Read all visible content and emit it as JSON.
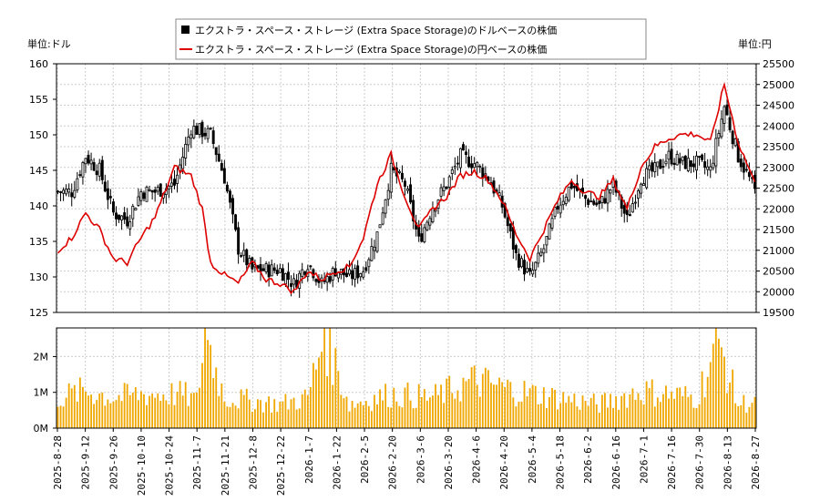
{
  "chart_data": {
    "type": "candlestick_line_volume",
    "legend": {
      "placement": "top-center",
      "entries": [
        {
          "label": "エクストラ・スペース・ストレージ (Extra Space Storage)のドルベースの株価",
          "color": "#000000",
          "marker": "square"
        },
        {
          "label": "エクストラ・スペース・ストレージ (Extra Space Storage)の円ベースの株価",
          "color": "#dd0000",
          "marker": "line"
        }
      ]
    },
    "left_unit_label": "単位:ドル",
    "right_unit_label": "単位:円",
    "left_axis": {
      "min": 125,
      "max": 160,
      "ticks": [
        "160",
        "155",
        "150",
        "145",
        "140",
        "135",
        "130",
        "125"
      ]
    },
    "right_axis": {
      "min": 19500,
      "max": 25500,
      "ticks": [
        "25500",
        "25000",
        "24500",
        "24000",
        "23500",
        "23000",
        "22500",
        "22000",
        "21500",
        "21000",
        "20500",
        "20000",
        "19500"
      ]
    },
    "volume_axis": {
      "min": 0,
      "max": 2800000,
      "ticks": [
        "2M",
        "1M",
        "0M"
      ]
    },
    "x_ticks": [
      "2025-8-28",
      "2025-9-12",
      "2025-9-26",
      "2025-10-10",
      "2025-10-24",
      "2025-11-7",
      "2025-11-21",
      "2025-12-8",
      "2025-12-22",
      "2026-1-7",
      "2026-1-22",
      "2026-2-5",
      "2026-2-20",
      "2026-3-6",
      "2026-3-20",
      "2026-4-6",
      "2026-4-20",
      "2026-5-4",
      "2026-5-18",
      "2026-6-2",
      "2026-6-16",
      "2026-7-1",
      "2026-7-16",
      "2026-7-30",
      "2026-8-13",
      "2026-8-27"
    ],
    "trading_days": 252,
    "usd_close_anchors": [
      [
        0,
        142
      ],
      [
        5,
        142
      ],
      [
        10,
        147
      ],
      [
        15,
        145
      ],
      [
        20,
        139
      ],
      [
        25,
        138
      ],
      [
        30,
        142
      ],
      [
        35,
        142
      ],
      [
        42,
        143
      ],
      [
        48,
        151
      ],
      [
        55,
        150
      ],
      [
        60,
        144
      ],
      [
        65,
        134
      ],
      [
        70,
        131
      ],
      [
        75,
        131
      ],
      [
        80,
        131
      ],
      [
        85,
        129
      ],
      [
        90,
        132
      ],
      [
        95,
        129
      ],
      [
        100,
        131
      ],
      [
        105,
        130
      ],
      [
        110,
        131
      ],
      [
        115,
        136
      ],
      [
        120,
        145
      ],
      [
        125,
        143
      ],
      [
        130,
        135
      ],
      [
        135,
        140
      ],
      [
        140,
        143
      ],
      [
        145,
        147
      ],
      [
        150,
        146
      ],
      [
        155,
        144
      ],
      [
        160,
        140
      ],
      [
        165,
        133
      ],
      [
        170,
        130
      ],
      [
        175,
        134
      ],
      [
        180,
        140
      ],
      [
        185,
        143
      ],
      [
        190,
        141
      ],
      [
        195,
        140
      ],
      [
        200,
        143
      ],
      [
        205,
        138
      ],
      [
        210,
        144
      ],
      [
        215,
        145
      ],
      [
        220,
        147
      ],
      [
        225,
        146
      ],
      [
        230,
        146
      ],
      [
        235,
        145
      ],
      [
        240,
        154
      ],
      [
        245,
        147
      ],
      [
        250,
        143
      ],
      [
        251,
        142
      ]
    ],
    "jpy_anchors": [
      [
        0,
        21000
      ],
      [
        5,
        21300
      ],
      [
        10,
        21900
      ],
      [
        15,
        21500
      ],
      [
        20,
        20800
      ],
      [
        25,
        20700
      ],
      [
        30,
        21300
      ],
      [
        35,
        21800
      ],
      [
        42,
        23000
      ],
      [
        48,
        22800
      ],
      [
        52,
        22000
      ],
      [
        55,
        20700
      ],
      [
        60,
        20400
      ],
      [
        65,
        20200
      ],
      [
        70,
        20700
      ],
      [
        75,
        20300
      ],
      [
        80,
        20200
      ],
      [
        85,
        20000
      ],
      [
        90,
        20500
      ],
      [
        95,
        20300
      ],
      [
        100,
        20500
      ],
      [
        105,
        20600
      ],
      [
        110,
        21300
      ],
      [
        115,
        22600
      ],
      [
        120,
        23300
      ],
      [
        125,
        22300
      ],
      [
        130,
        21500
      ],
      [
        135,
        22000
      ],
      [
        140,
        22300
      ],
      [
        145,
        22800
      ],
      [
        150,
        22900
      ],
      [
        155,
        22700
      ],
      [
        160,
        22200
      ],
      [
        165,
        21400
      ],
      [
        170,
        20800
      ],
      [
        175,
        21500
      ],
      [
        180,
        22200
      ],
      [
        185,
        22700
      ],
      [
        190,
        22400
      ],
      [
        195,
        22300
      ],
      [
        200,
        22700
      ],
      [
        205,
        22000
      ],
      [
        210,
        23000
      ],
      [
        215,
        23500
      ],
      [
        220,
        23700
      ],
      [
        225,
        23800
      ],
      [
        230,
        23800
      ],
      [
        235,
        23600
      ],
      [
        240,
        25000
      ],
      [
        245,
        23600
      ],
      [
        250,
        22800
      ],
      [
        251,
        22600
      ]
    ],
    "volume_anchors": [
      [
        0,
        900000
      ],
      [
        10,
        1100000
      ],
      [
        20,
        900000
      ],
      [
        30,
        1000000
      ],
      [
        45,
        1000000
      ],
      [
        50,
        800000
      ],
      [
        53,
        2800000
      ],
      [
        60,
        900000
      ],
      [
        70,
        800000
      ],
      [
        80,
        700000
      ],
      [
        90,
        900000
      ],
      [
        96,
        2800000
      ],
      [
        105,
        700000
      ],
      [
        120,
        1000000
      ],
      [
        135,
        900000
      ],
      [
        150,
        1400000
      ],
      [
        165,
        1100000
      ],
      [
        180,
        900000
      ],
      [
        195,
        700000
      ],
      [
        210,
        1100000
      ],
      [
        230,
        900000
      ],
      [
        238,
        2500000
      ],
      [
        245,
        700000
      ],
      [
        251,
        800000
      ]
    ]
  }
}
